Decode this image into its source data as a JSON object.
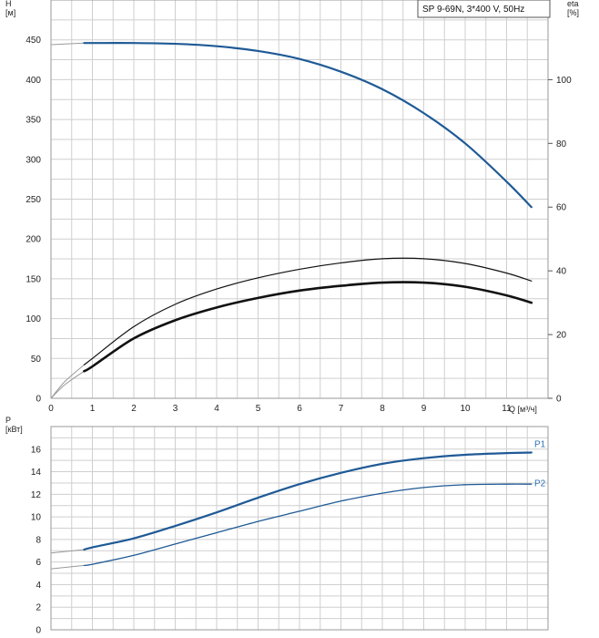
{
  "legend_text": "SP 9-69N, 3*400 V, 50Hz",
  "colors": {
    "blue": "#1f5a96",
    "black": "#111111",
    "gray": "#9a9a9a",
    "label": "#2f72b5"
  },
  "chart_data": [
    {
      "type": "line",
      "xlabel": "Q [м³/ч]",
      "ylabel": "H\n[м]",
      "y2label": "eta\n[%]",
      "xlim": [
        0,
        12
      ],
      "ylim": [
        0,
        500
      ],
      "y2lim": [
        0,
        125
      ],
      "x_ticks": [
        0,
        1,
        2,
        3,
        4,
        5,
        6,
        7,
        8,
        9,
        10,
        11
      ],
      "y_ticks": [
        0,
        50,
        100,
        150,
        200,
        250,
        300,
        350,
        400,
        450
      ],
      "y2_ticks": [
        0,
        20,
        40,
        60,
        80,
        100
      ],
      "grid": true,
      "series": [
        {
          "axis": "left",
          "color_key": "blue",
          "width": 2.2,
          "x": [
            0.8,
            1,
            2,
            3,
            4,
            5,
            6,
            7,
            8,
            9,
            10,
            11,
            11.6
          ],
          "y": [
            446,
            446,
            446,
            445,
            442,
            436,
            426,
            410,
            388,
            358,
            320,
            272,
            240
          ],
          "ext_x": [
            0,
            0.8
          ],
          "ext_y": [
            444,
            446
          ]
        },
        {
          "axis": "right",
          "color_key": "black",
          "width": 1.2,
          "x": [
            0.8,
            1,
            2,
            3,
            4,
            5,
            6,
            7,
            8,
            9,
            10,
            11,
            11.6
          ],
          "y": [
            10.5,
            12.5,
            22.5,
            29.5,
            34.3,
            37.8,
            40.5,
            42.5,
            43.8,
            43.8,
            42.3,
            39.3,
            36.8
          ],
          "ext_x": [
            0,
            0.8
          ],
          "ext_y": [
            0,
            10.5
          ]
        },
        {
          "axis": "right",
          "color_key": "black",
          "width": 2.6,
          "x": [
            0.8,
            1,
            2,
            3,
            4,
            5,
            6,
            7,
            8,
            9,
            10,
            11,
            11.6
          ],
          "y": [
            8.5,
            10,
            18.8,
            24.5,
            28.5,
            31.5,
            33.8,
            35.3,
            36.3,
            36.3,
            35,
            32.3,
            30
          ],
          "ext_x": [
            0,
            0.8
          ],
          "ext_y": [
            0,
            8.5
          ]
        }
      ]
    },
    {
      "type": "line",
      "ylabel": "P\n[кВт]",
      "xlim": [
        0,
        12
      ],
      "ylim": [
        0,
        18
      ],
      "y_ticks": [
        0,
        2,
        4,
        6,
        8,
        10,
        12,
        14,
        16
      ],
      "grid": true,
      "series": [
        {
          "name": "P1",
          "color_key": "blue",
          "width": 2.2,
          "x": [
            0.8,
            1,
            2,
            3,
            4,
            5,
            6,
            7,
            8,
            9,
            10,
            11,
            11.6
          ],
          "y": [
            7.1,
            7.3,
            8.1,
            9.2,
            10.4,
            11.7,
            12.9,
            13.9,
            14.7,
            15.2,
            15.5,
            15.65,
            15.7
          ],
          "ext_x": [
            0,
            0.8
          ],
          "ext_y": [
            6.8,
            7.1
          ]
        },
        {
          "name": "P2",
          "color_key": "blue",
          "width": 1.3,
          "x": [
            0.8,
            1,
            2,
            3,
            4,
            5,
            6,
            7,
            8,
            9,
            10,
            11,
            11.6
          ],
          "y": [
            5.7,
            5.8,
            6.6,
            7.6,
            8.6,
            9.6,
            10.5,
            11.4,
            12.1,
            12.6,
            12.85,
            12.9,
            12.9
          ],
          "ext_x": [
            0,
            0.8
          ],
          "ext_y": [
            5.4,
            5.7
          ]
        }
      ]
    }
  ]
}
